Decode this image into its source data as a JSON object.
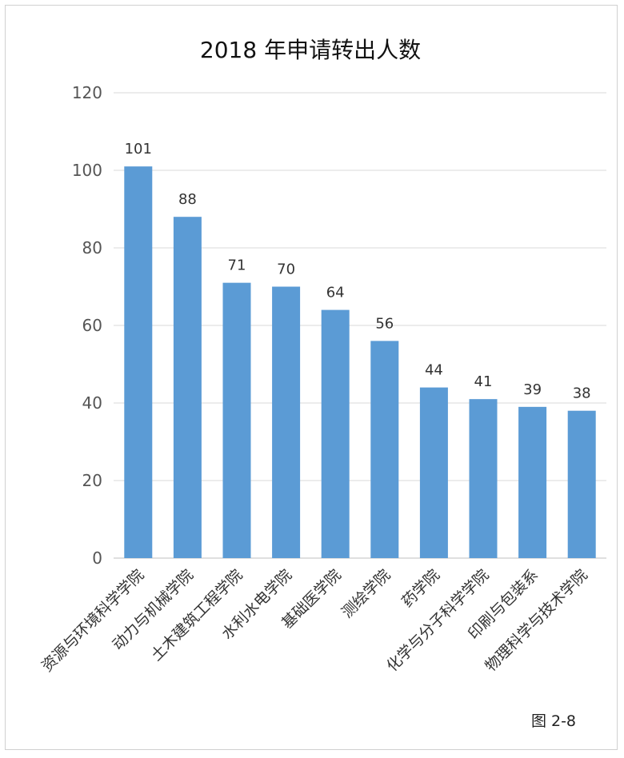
{
  "chart_data": {
    "type": "bar",
    "title": "2018 年申请转出人数",
    "categories": [
      "资源与环境科学学院",
      "动力与机械学院",
      "土木建筑工程学院",
      "水利水电学院",
      "基础医学院",
      "测绘学院",
      "药学院",
      "化学与分子科学学院",
      "印刷与包装系",
      "物理科学与技术学院"
    ],
    "values": [
      101,
      88,
      71,
      70,
      64,
      56,
      44,
      41,
      39,
      38
    ],
    "ylim": [
      0,
      120
    ],
    "yticks": [
      0,
      20,
      40,
      60,
      80,
      100,
      120
    ],
    "grid": true,
    "legend": "none",
    "bar_color": "#5b9bd5",
    "data_labels": true
  },
  "figure_label": "图 2-8"
}
